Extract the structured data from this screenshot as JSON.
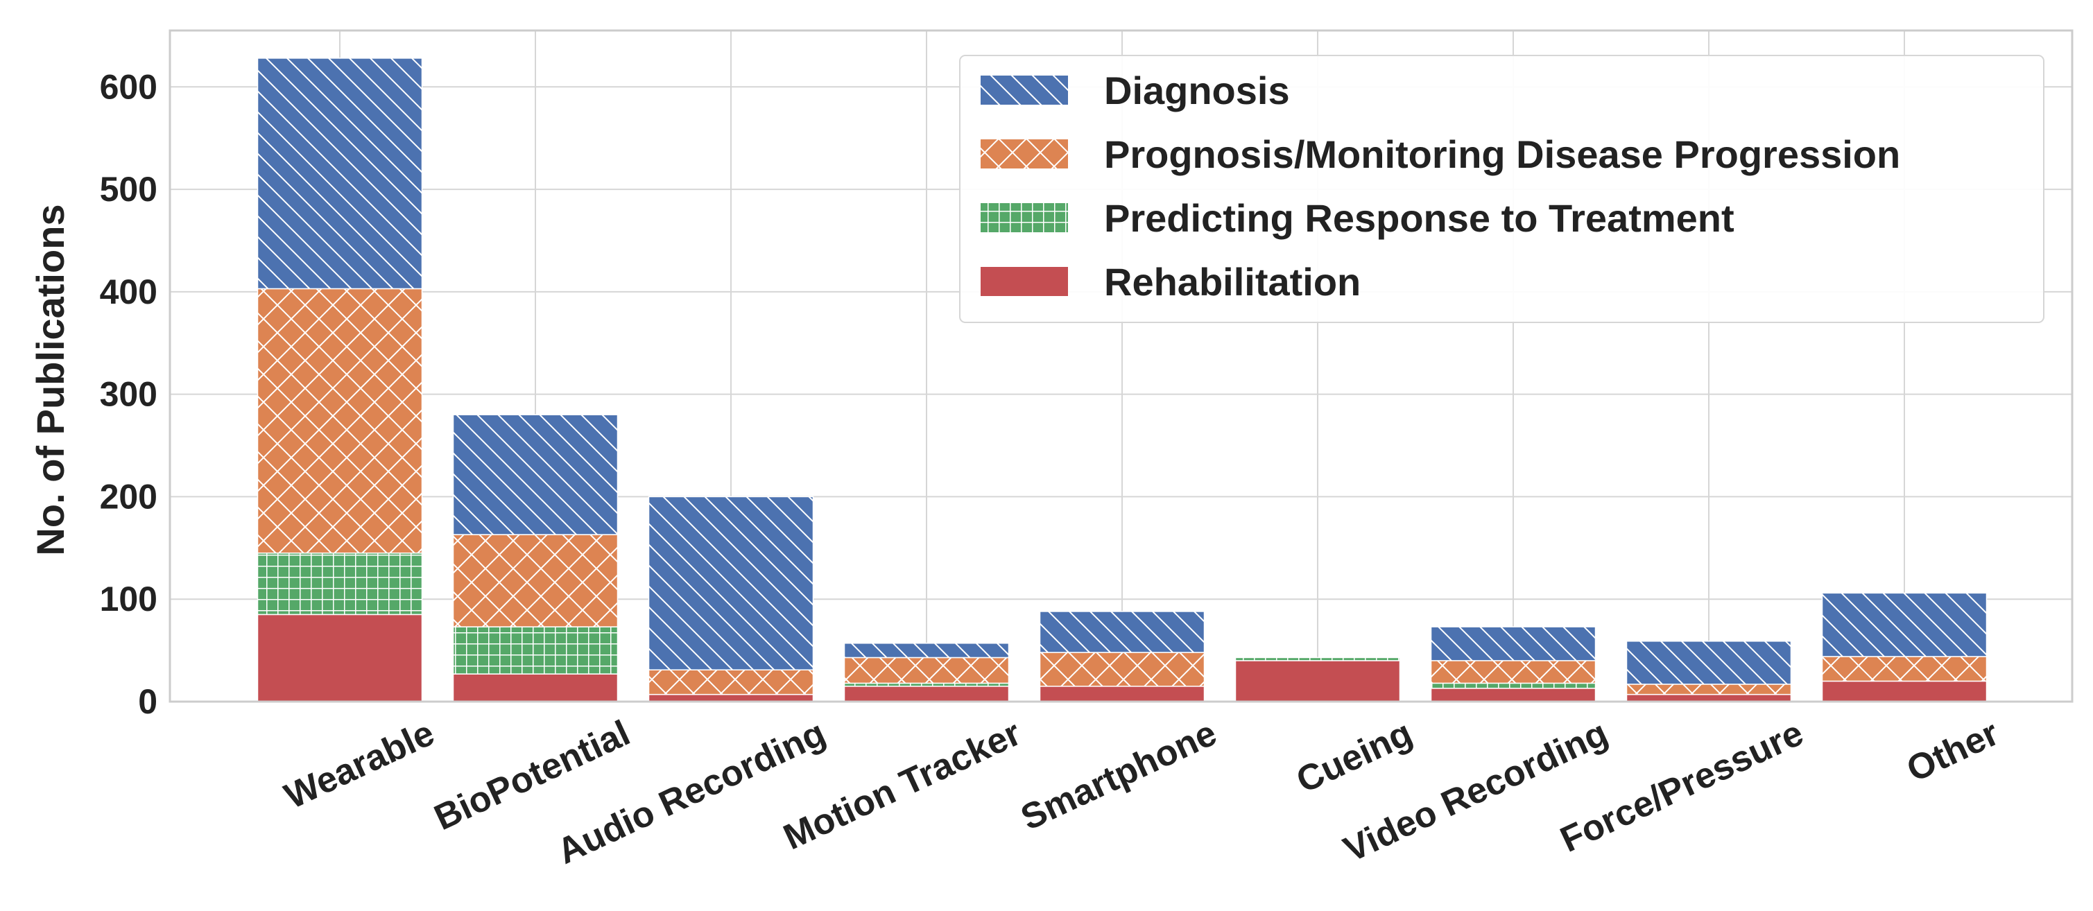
{
  "chart_data": {
    "type": "bar",
    "stacked": true,
    "title": "",
    "xlabel": "",
    "ylabel": "No. of Publications",
    "ylim": [
      0,
      655
    ],
    "yticks": [
      0,
      100,
      200,
      300,
      400,
      500,
      600
    ],
    "grid": true,
    "legend_position": "top-right",
    "categories": [
      "Wearable",
      "BioPotential",
      "Audio Recording",
      "Motion Tracker",
      "Smartphone",
      "Cueing",
      "Video Recording",
      "Force/Pressure",
      "Other"
    ],
    "series": [
      {
        "name": "Rehabilitation",
        "color": "#C44E52",
        "pattern": "solid",
        "values": [
          85,
          27,
          7,
          15,
          15,
          40,
          13,
          7,
          20
        ]
      },
      {
        "name": "Predicting Response to Treatment",
        "color": "#55A868",
        "pattern": "grid",
        "values": [
          60,
          46,
          0,
          3,
          0,
          3,
          5,
          0,
          0
        ]
      },
      {
        "name": "Prognosis/Monitoring Disease Progression",
        "color": "#DD8452",
        "pattern": "crosshatch",
        "values": [
          258,
          90,
          24,
          25,
          33,
          0,
          22,
          10,
          24
        ]
      },
      {
        "name": "Diagnosis",
        "color": "#4C72B0",
        "pattern": "diagonal",
        "values": [
          225,
          117,
          169,
          14,
          40,
          0,
          33,
          42,
          62
        ]
      }
    ],
    "legend_order": [
      "Diagnosis",
      "Prognosis/Monitoring Disease Progression",
      "Predicting Response to Treatment",
      "Rehabilitation"
    ]
  }
}
